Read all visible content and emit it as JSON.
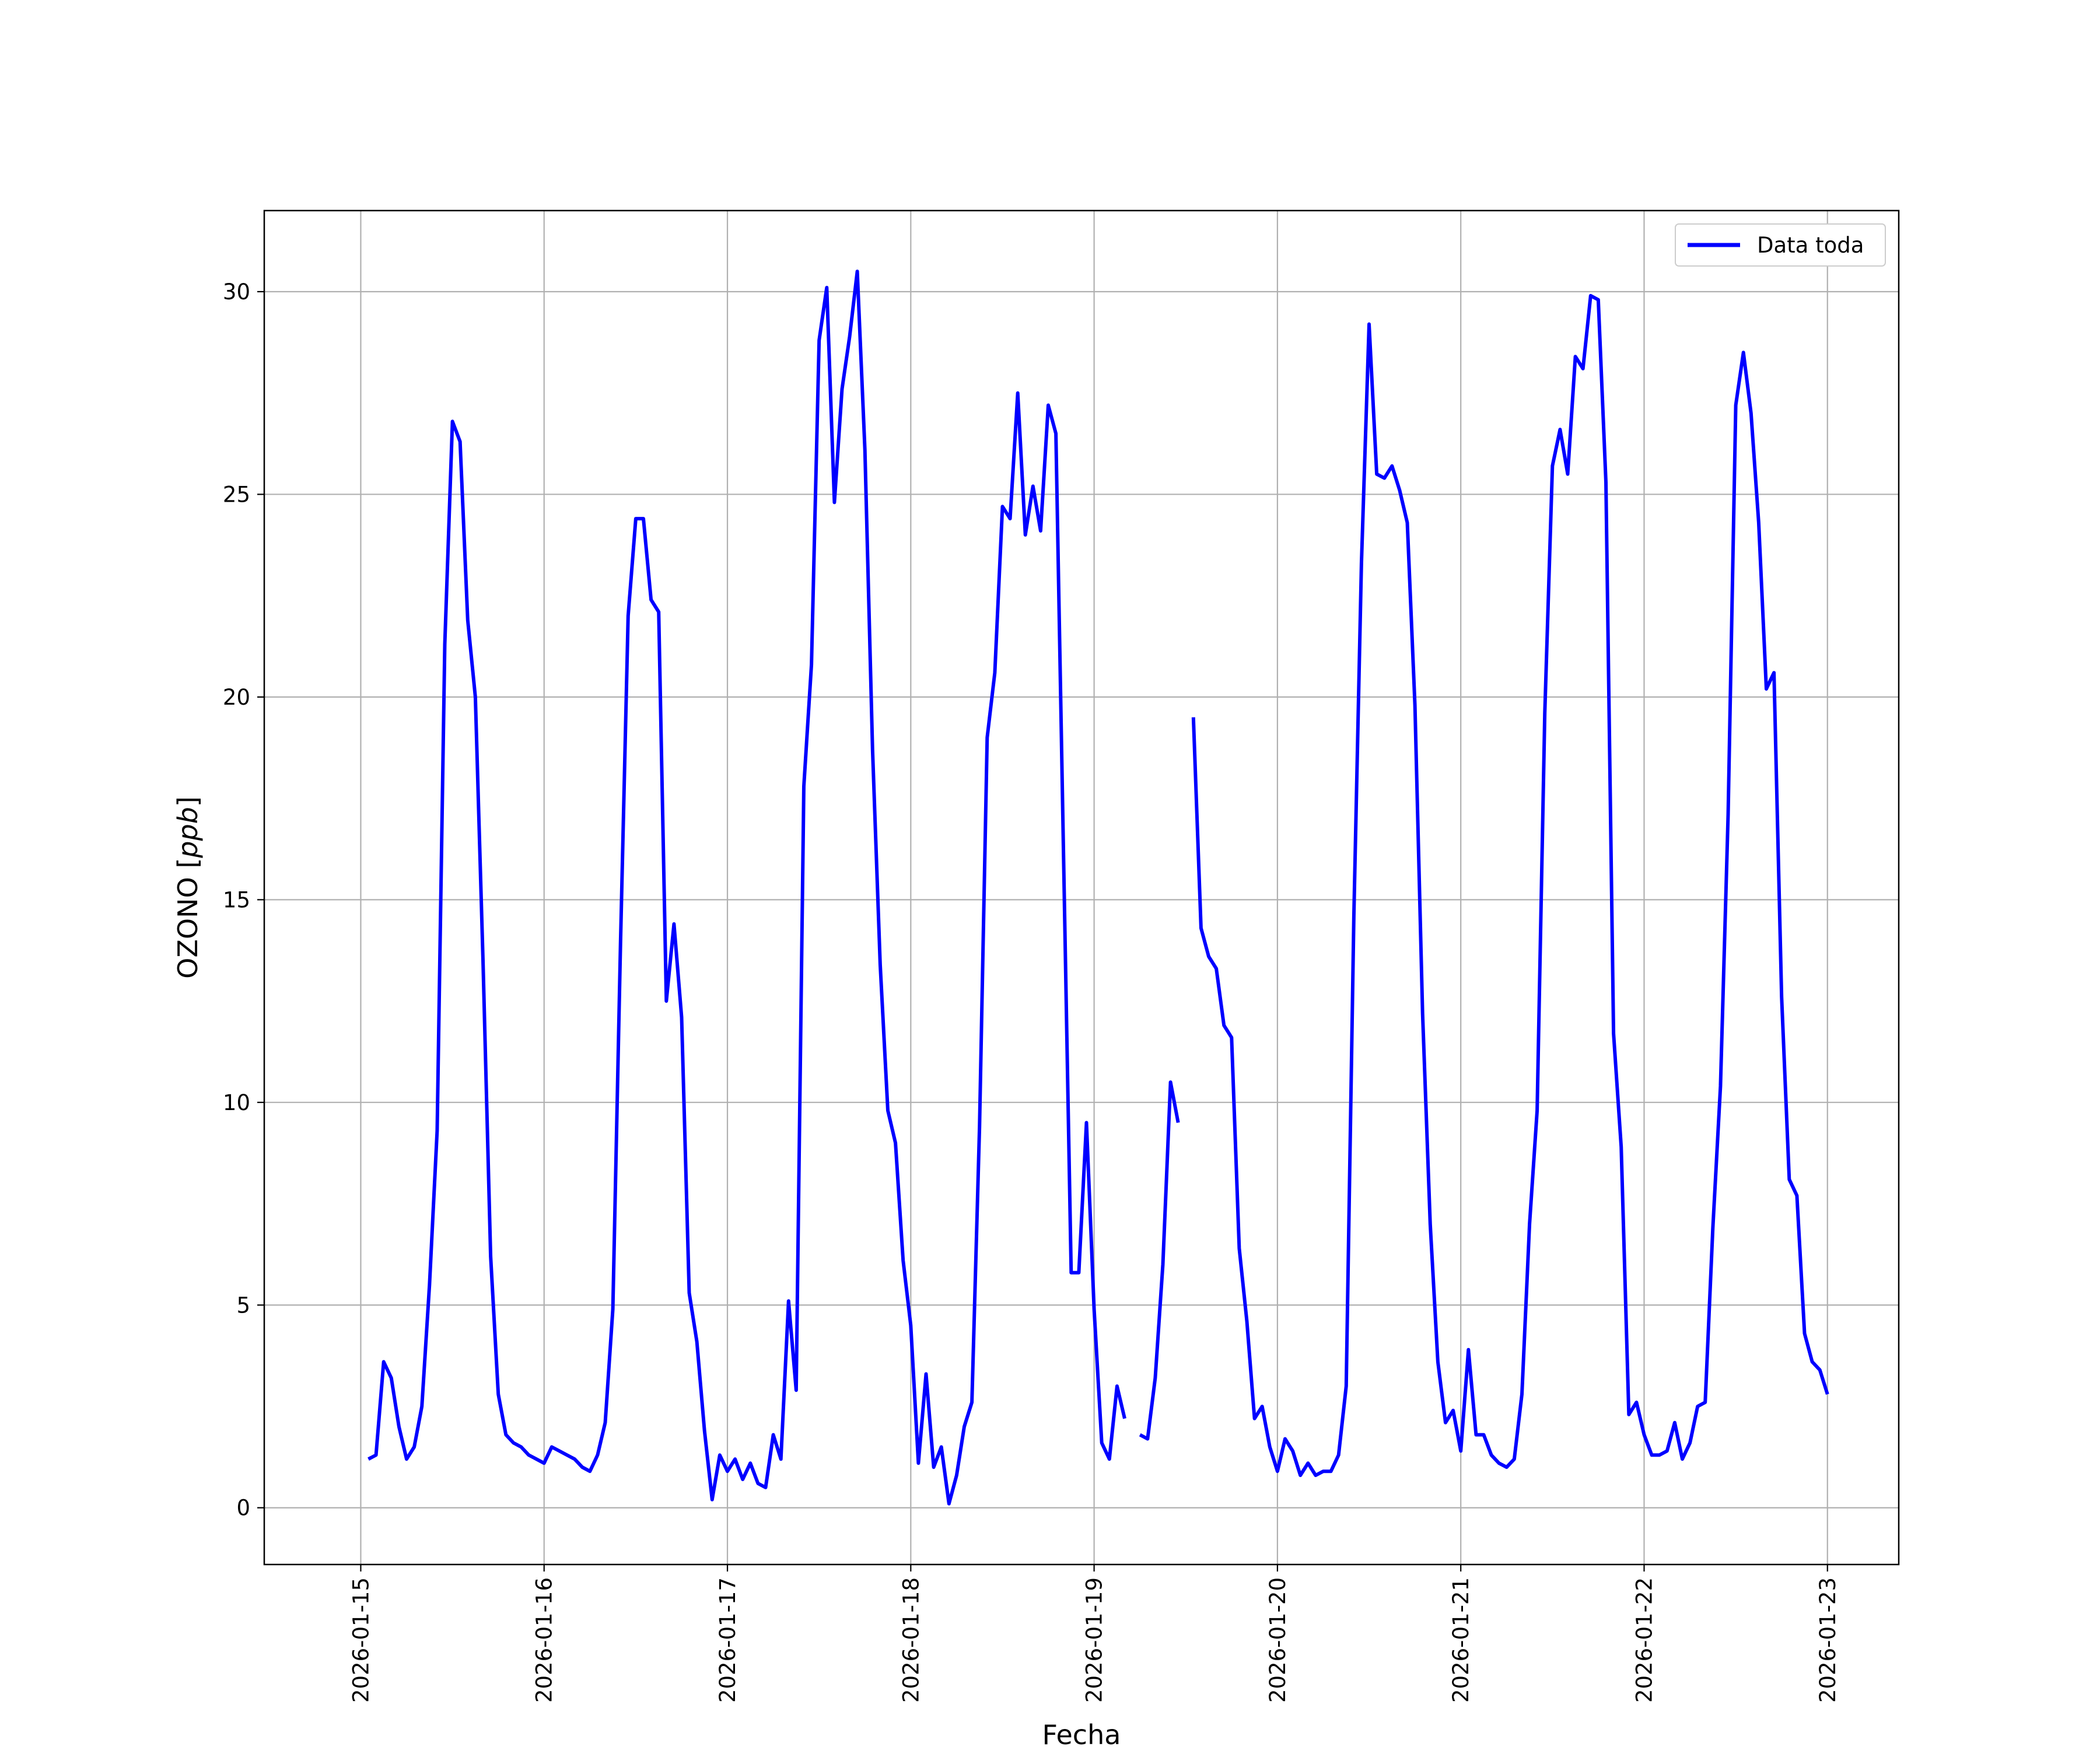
{
  "chart_data": {
    "type": "line",
    "title": "",
    "xlabel": "Fecha",
    "ylabel": "OZONO [ppb]",
    "ylabel_parts": {
      "name": "OZONO",
      "unit": "ppb"
    },
    "x_tick_labels": [
      "2026-01-15",
      "2026-01-16",
      "2026-01-17",
      "2026-01-18",
      "2026-01-19",
      "2026-01-20",
      "2026-01-21",
      "2026-01-22",
      "2026-01-23"
    ],
    "y_ticks": [
      0,
      5,
      10,
      15,
      20,
      25,
      30
    ],
    "y_tick_labels": [
      "0",
      "5",
      "10",
      "15",
      "20",
      "25",
      "30"
    ],
    "xlim": [
      "2026-01-14T11:22",
      "2026-01-23T09:20"
    ],
    "ylim": [
      -1.4,
      32.0
    ],
    "grid": true,
    "legend_position": "top-right",
    "series": [
      {
        "name": "Data toda",
        "color": "#0000ff",
        "x": [
          "2026-01-15T01:00",
          "2026-01-15T02:00",
          "2026-01-15T03:00",
          "2026-01-15T04:00",
          "2026-01-15T05:00",
          "2026-01-15T06:00",
          "2026-01-15T07:00",
          "2026-01-15T08:00",
          "2026-01-15T09:00",
          "2026-01-15T10:00",
          "2026-01-15T11:00",
          "2026-01-15T12:00",
          "2026-01-15T13:00",
          "2026-01-15T14:00",
          "2026-01-15T15:00",
          "2026-01-15T16:00",
          "2026-01-15T17:00",
          "2026-01-15T18:00",
          "2026-01-15T19:00",
          "2026-01-15T20:00",
          "2026-01-15T21:00",
          "2026-01-15T22:00",
          "2026-01-15T23:00",
          "2026-01-16T00:00",
          "2026-01-16T01:00",
          "2026-01-16T02:00",
          "2026-01-16T03:00",
          "2026-01-16T04:00",
          "2026-01-16T05:00",
          "2026-01-16T06:00",
          "2026-01-16T07:00",
          "2026-01-16T08:00",
          "2026-01-16T09:00",
          "2026-01-16T10:00",
          "2026-01-16T11:00",
          "2026-01-16T12:00",
          "2026-01-16T13:00",
          "2026-01-16T14:00",
          "2026-01-16T15:00",
          "2026-01-16T16:00",
          "2026-01-16T17:00",
          "2026-01-16T18:00",
          "2026-01-16T19:00",
          "2026-01-16T20:00",
          "2026-01-16T21:00",
          "2026-01-16T22:00",
          "2026-01-16T23:00",
          "2026-01-17T00:00",
          "2026-01-17T01:00",
          "2026-01-17T02:00",
          "2026-01-17T03:00",
          "2026-01-17T04:00",
          "2026-01-17T05:00",
          "2026-01-17T06:00",
          "2026-01-17T07:00",
          "2026-01-17T08:00",
          "2026-01-17T09:00",
          "2026-01-17T10:00",
          "2026-01-17T11:00",
          "2026-01-17T12:00",
          "2026-01-17T13:00",
          "2026-01-17T14:00",
          "2026-01-17T15:00",
          "2026-01-17T16:00",
          "2026-01-17T17:00",
          "2026-01-17T18:00",
          "2026-01-17T19:00",
          "2026-01-17T20:00",
          "2026-01-17T21:00",
          "2026-01-17T22:00",
          "2026-01-17T23:00",
          "2026-01-18T00:00",
          "2026-01-18T01:00",
          "2026-01-18T02:00",
          "2026-01-18T03:00",
          "2026-01-18T04:00",
          "2026-01-18T05:00",
          "2026-01-18T06:00",
          "2026-01-18T07:00",
          "2026-01-18T08:00",
          "2026-01-18T09:00",
          "2026-01-18T10:00",
          "2026-01-18T11:00",
          "2026-01-18T12:00",
          "2026-01-18T13:00",
          "2026-01-18T14:00",
          "2026-01-18T15:00",
          "2026-01-18T16:00",
          "2026-01-18T17:00",
          "2026-01-18T18:00",
          "2026-01-18T19:00",
          "2026-01-18T20:00",
          "2026-01-18T21:00",
          "2026-01-18T22:00",
          "2026-01-18T23:00",
          "2026-01-19T00:00",
          "2026-01-19T01:00",
          "2026-01-19T02:00",
          "2026-01-19T03:00",
          "2026-01-19T04:00",
          "2026-01-19T05:00",
          "2026-01-19T06:00",
          "2026-01-19T07:00",
          "2026-01-19T08:00",
          "2026-01-19T09:00",
          "2026-01-19T10:00",
          "2026-01-19T11:00",
          "2026-01-19T12:00",
          "2026-01-19T13:00",
          "2026-01-19T14:00",
          "2026-01-19T15:00",
          "2026-01-19T16:00",
          "2026-01-19T17:00",
          "2026-01-19T18:00",
          "2026-01-19T19:00",
          "2026-01-19T20:00",
          "2026-01-19T21:00",
          "2026-01-19T22:00",
          "2026-01-19T23:00",
          "2026-01-20T00:00",
          "2026-01-20T01:00",
          "2026-01-20T02:00",
          "2026-01-20T03:00",
          "2026-01-20T04:00",
          "2026-01-20T05:00",
          "2026-01-20T06:00",
          "2026-01-20T07:00",
          "2026-01-20T08:00",
          "2026-01-20T09:00",
          "2026-01-20T10:00",
          "2026-01-20T11:00",
          "2026-01-20T12:00",
          "2026-01-20T13:00",
          "2026-01-20T14:00",
          "2026-01-20T15:00",
          "2026-01-20T16:00",
          "2026-01-20T17:00",
          "2026-01-20T18:00",
          "2026-01-20T19:00",
          "2026-01-20T20:00",
          "2026-01-20T21:00",
          "2026-01-20T22:00",
          "2026-01-20T23:00",
          "2026-01-21T00:00",
          "2026-01-21T01:00",
          "2026-01-21T02:00",
          "2026-01-21T03:00",
          "2026-01-21T04:00",
          "2026-01-21T05:00",
          "2026-01-21T06:00",
          "2026-01-21T07:00",
          "2026-01-21T08:00",
          "2026-01-21T09:00",
          "2026-01-21T10:00",
          "2026-01-21T11:00",
          "2026-01-21T12:00",
          "2026-01-21T13:00",
          "2026-01-21T14:00",
          "2026-01-21T15:00",
          "2026-01-21T16:00",
          "2026-01-21T17:00",
          "2026-01-21T18:00",
          "2026-01-21T19:00",
          "2026-01-21T20:00",
          "2026-01-21T21:00",
          "2026-01-21T22:00",
          "2026-01-21T23:00",
          "2026-01-22T00:00",
          "2026-01-22T01:00",
          "2026-01-22T02:00",
          "2026-01-22T03:00",
          "2026-01-22T04:00",
          "2026-01-22T05:00",
          "2026-01-22T06:00",
          "2026-01-22T07:00",
          "2026-01-22T08:00",
          "2026-01-22T09:00",
          "2026-01-22T10:00",
          "2026-01-22T11:00",
          "2026-01-22T12:00",
          "2026-01-22T13:00",
          "2026-01-22T14:00",
          "2026-01-22T15:00",
          "2026-01-22T16:00",
          "2026-01-22T17:00",
          "2026-01-22T18:00",
          "2026-01-22T19:00",
          "2026-01-22T20:00",
          "2026-01-22T21:00",
          "2026-01-22T22:00",
          "2026-01-22T23:00",
          "2026-01-23T00:00"
        ],
        "y": [
          1.2,
          1.3,
          3.6,
          3.2,
          2.0,
          1.2,
          1.5,
          2.5,
          5.5,
          9.3,
          21.3,
          26.8,
          26.3,
          21.9,
          20.0,
          13.5,
          6.2,
          2.8,
          1.8,
          1.6,
          1.5,
          1.3,
          1.2,
          1.1,
          1.5,
          1.4,
          1.3,
          1.2,
          1.0,
          0.9,
          1.3,
          2.1,
          4.9,
          13.9,
          22.0,
          24.4,
          24.4,
          22.4,
          22.1,
          12.5,
          14.4,
          12.1,
          5.3,
          4.1,
          1.9,
          0.2,
          1.3,
          0.9,
          1.2,
          0.7,
          1.1,
          0.6,
          0.5,
          1.8,
          1.2,
          5.1,
          2.9,
          17.8,
          20.8,
          28.8,
          30.1,
          24.8,
          27.6,
          28.9,
          30.5,
          26.1,
          18.7,
          13.4,
          9.8,
          9.0,
          6.1,
          4.5,
          1.1,
          3.3,
          1.0,
          1.5,
          0.1,
          0.8,
          2.0,
          2.6,
          9.4,
          19.0,
          20.6,
          24.7,
          24.4,
          27.5,
          24.0,
          25.2,
          24.1,
          27.2,
          26.5,
          16.1,
          5.8,
          5.8,
          9.5,
          4.9,
          1.6,
          1.2,
          3.0,
          2.2,
          null,
          1.8,
          1.7,
          3.2,
          6.0,
          10.5,
          9.5,
          null,
          19.5,
          14.3,
          13.6,
          13.3,
          11.9,
          11.6,
          6.4,
          4.6,
          2.2,
          2.5,
          1.5,
          0.9,
          1.7,
          1.4,
          0.8,
          1.1,
          0.8,
          0.9,
          0.9,
          1.3,
          3.0,
          14.6,
          23.3,
          29.2,
          25.5,
          25.4,
          25.7,
          25.1,
          24.3,
          19.8,
          12.2,
          7.0,
          3.6,
          2.1,
          2.4,
          1.4,
          3.9,
          1.8,
          1.8,
          1.3,
          1.1,
          1.0,
          1.2,
          2.8,
          7.0,
          9.8,
          19.6,
          25.7,
          26.6,
          25.5,
          28.4,
          28.1,
          29.9,
          29.8,
          25.3,
          11.7,
          8.9,
          2.3,
          2.6,
          1.8,
          1.3,
          1.3,
          1.4,
          2.1,
          1.2,
          1.6,
          2.5,
          2.6,
          6.9,
          10.4,
          17.1,
          27.2,
          28.5,
          27.0,
          24.3,
          20.2,
          20.6,
          12.6,
          8.1,
          7.7,
          4.3,
          3.6,
          3.4,
          2.8
        ]
      }
    ]
  }
}
